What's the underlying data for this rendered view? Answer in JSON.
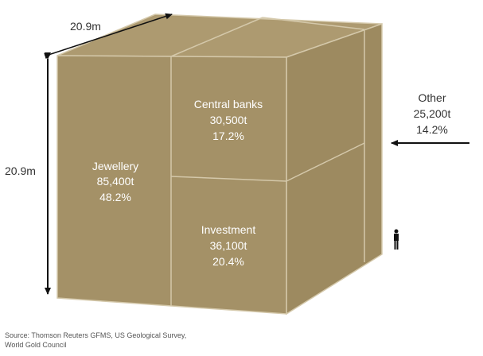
{
  "dimensions": {
    "width": "20.9m",
    "height": "20.9m"
  },
  "segments": [
    {
      "label": "Jewellery",
      "amount": "85,400t",
      "share": "48.2%"
    },
    {
      "label": "Central banks",
      "amount": "30,500t",
      "share": "17.2%"
    },
    {
      "label": "Investment",
      "amount": "36,100t",
      "share": "20.4%"
    },
    {
      "label": "Other",
      "amount": "25,200t",
      "share": "14.2%"
    }
  ],
  "source": [
    "Source: Thomson Reuters GFMS, US Geological Survey,",
    "World Gold Council"
  ]
}
